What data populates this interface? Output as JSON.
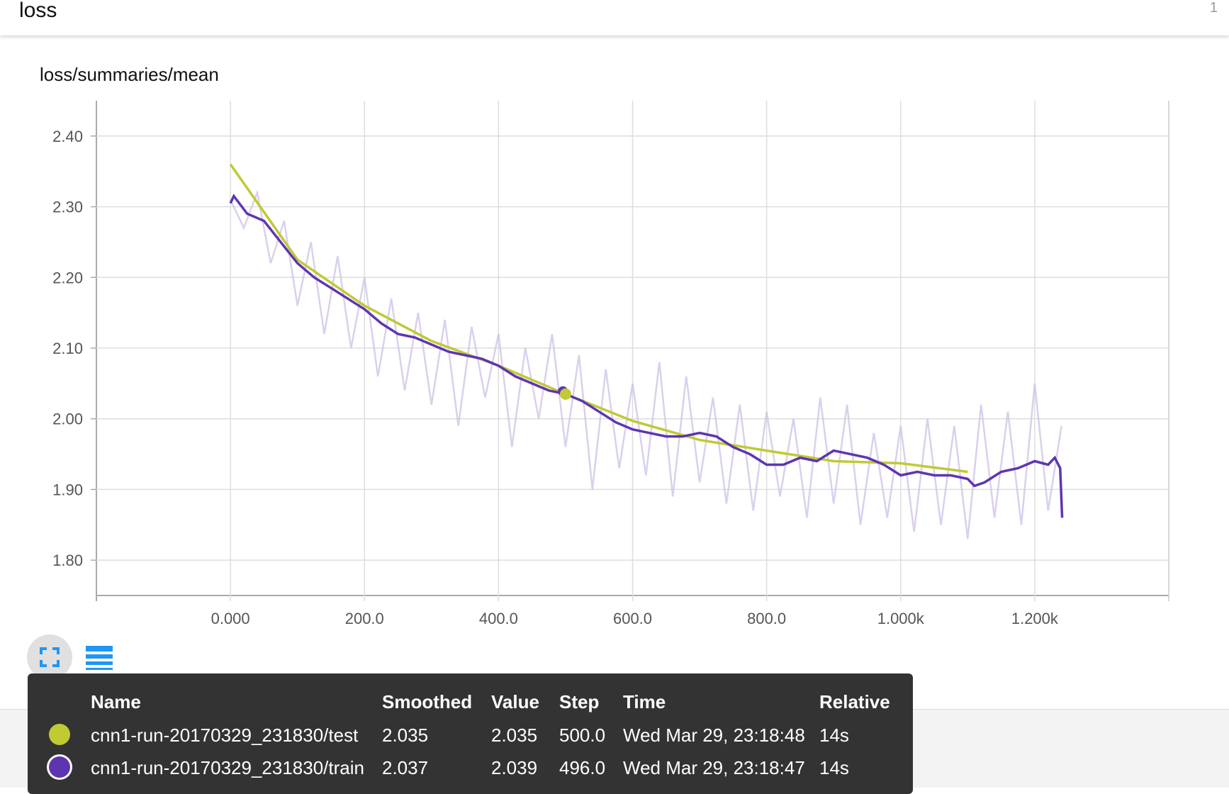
{
  "header": {
    "title": "loss",
    "count": "1"
  },
  "chart_title": "loss/summaries/mean",
  "colors": {
    "test": "#c0ca33",
    "train": "#5e35b1",
    "train_raw": "#d1c4e9",
    "grid": "#dddddd",
    "icon": "#2196f3",
    "tooltip_bg": "#333333"
  },
  "icons": {
    "fullscreen": "fullscreen-icon",
    "list": "list-icon"
  },
  "chart_data": {
    "type": "line",
    "title": "loss/summaries/mean",
    "xlim": [
      -200,
      1400
    ],
    "ylim": [
      1.75,
      2.45
    ],
    "grid": true,
    "x_ticks": [
      0,
      200,
      400,
      600,
      800,
      1000,
      1200
    ],
    "x_tick_labels": [
      "0.000",
      "200.0",
      "400.0",
      "600.0",
      "800.0",
      "1.000k",
      "1.200k"
    ],
    "y_ticks": [
      1.8,
      1.9,
      2.0,
      2.1,
      2.2,
      2.3,
      2.4
    ],
    "y_tick_labels": [
      "1.80",
      "1.90",
      "2.00",
      "2.10",
      "2.20",
      "2.30",
      "2.40"
    ],
    "series": [
      {
        "name": "cnn1-run-20170329_231830/train",
        "kind": "raw",
        "x": [
          0,
          20,
          40,
          60,
          80,
          100,
          120,
          140,
          160,
          180,
          200,
          220,
          240,
          260,
          280,
          300,
          320,
          340,
          360,
          380,
          400,
          420,
          440,
          460,
          480,
          500,
          520,
          540,
          560,
          580,
          600,
          620,
          640,
          660,
          680,
          700,
          720,
          740,
          760,
          780,
          800,
          820,
          840,
          860,
          880,
          900,
          920,
          940,
          960,
          980,
          1000,
          1020,
          1040,
          1060,
          1080,
          1100,
          1120,
          1140,
          1160,
          1180,
          1200,
          1220,
          1240
        ],
        "y": [
          2.31,
          2.27,
          2.32,
          2.22,
          2.28,
          2.16,
          2.25,
          2.12,
          2.23,
          2.1,
          2.2,
          2.06,
          2.17,
          2.04,
          2.15,
          2.02,
          2.14,
          1.99,
          2.13,
          2.03,
          2.12,
          1.96,
          2.1,
          2.0,
          2.12,
          1.96,
          2.09,
          1.9,
          2.07,
          1.93,
          2.05,
          1.92,
          2.08,
          1.89,
          2.06,
          1.91,
          2.03,
          1.88,
          2.02,
          1.87,
          2.01,
          1.89,
          2.0,
          1.86,
          2.03,
          1.88,
          2.02,
          1.85,
          1.98,
          1.86,
          1.99,
          1.84,
          2.0,
          1.85,
          1.99,
          1.83,
          2.02,
          1.86,
          2.01,
          1.85,
          2.05,
          1.87,
          1.99
        ]
      },
      {
        "name": "cnn1-run-20170329_231830/train",
        "kind": "smoothed",
        "x": [
          0,
          5,
          25,
          50,
          75,
          100,
          125,
          150,
          175,
          200,
          225,
          250,
          275,
          300,
          325,
          350,
          375,
          400,
          425,
          450,
          475,
          500,
          525,
          550,
          575,
          600,
          625,
          650,
          675,
          700,
          725,
          750,
          775,
          800,
          825,
          850,
          875,
          900,
          925,
          950,
          975,
          1000,
          1025,
          1050,
          1075,
          1100,
          1110,
          1125,
          1150,
          1175,
          1200,
          1220,
          1230,
          1238,
          1241
        ],
        "y": [
          2.305,
          2.315,
          2.29,
          2.28,
          2.25,
          2.22,
          2.2,
          2.185,
          2.17,
          2.155,
          2.135,
          2.12,
          2.115,
          2.105,
          2.095,
          2.09,
          2.085,
          2.075,
          2.06,
          2.05,
          2.04,
          2.035,
          2.025,
          2.01,
          1.995,
          1.985,
          1.98,
          1.975,
          1.975,
          1.98,
          1.975,
          1.96,
          1.95,
          1.935,
          1.935,
          1.945,
          1.94,
          1.955,
          1.95,
          1.945,
          1.935,
          1.92,
          1.925,
          1.92,
          1.92,
          1.915,
          1.905,
          1.91,
          1.925,
          1.93,
          1.94,
          1.935,
          1.945,
          1.93,
          1.86
        ]
      },
      {
        "name": "cnn1-run-20170329_231830/test",
        "kind": "smoothed",
        "x": [
          0,
          100,
          200,
          300,
          400,
          500,
          600,
          700,
          800,
          900,
          1000,
          1100
        ],
        "y": [
          2.36,
          2.225,
          2.16,
          2.11,
          2.075,
          2.035,
          1.997,
          1.97,
          1.955,
          1.94,
          1.937,
          1.925
        ]
      }
    ],
    "hover_step": 500
  },
  "tooltip": {
    "headers": [
      "Name",
      "Smoothed",
      "Value",
      "Step",
      "Time",
      "Relative"
    ],
    "rows": [
      {
        "name": "cnn1-run-20170329_231830/test",
        "smoothed": "2.035",
        "value": "2.035",
        "step": "500.0",
        "time": "Wed Mar 29, 23:18:48",
        "relative": "14s",
        "color": "#c0ca33"
      },
      {
        "name": "cnn1-run-20170329_231830/train",
        "smoothed": "2.037",
        "value": "2.039",
        "step": "496.0",
        "time": "Wed Mar 29, 23:18:47",
        "relative": "14s",
        "color": "#5e35b1"
      }
    ]
  }
}
